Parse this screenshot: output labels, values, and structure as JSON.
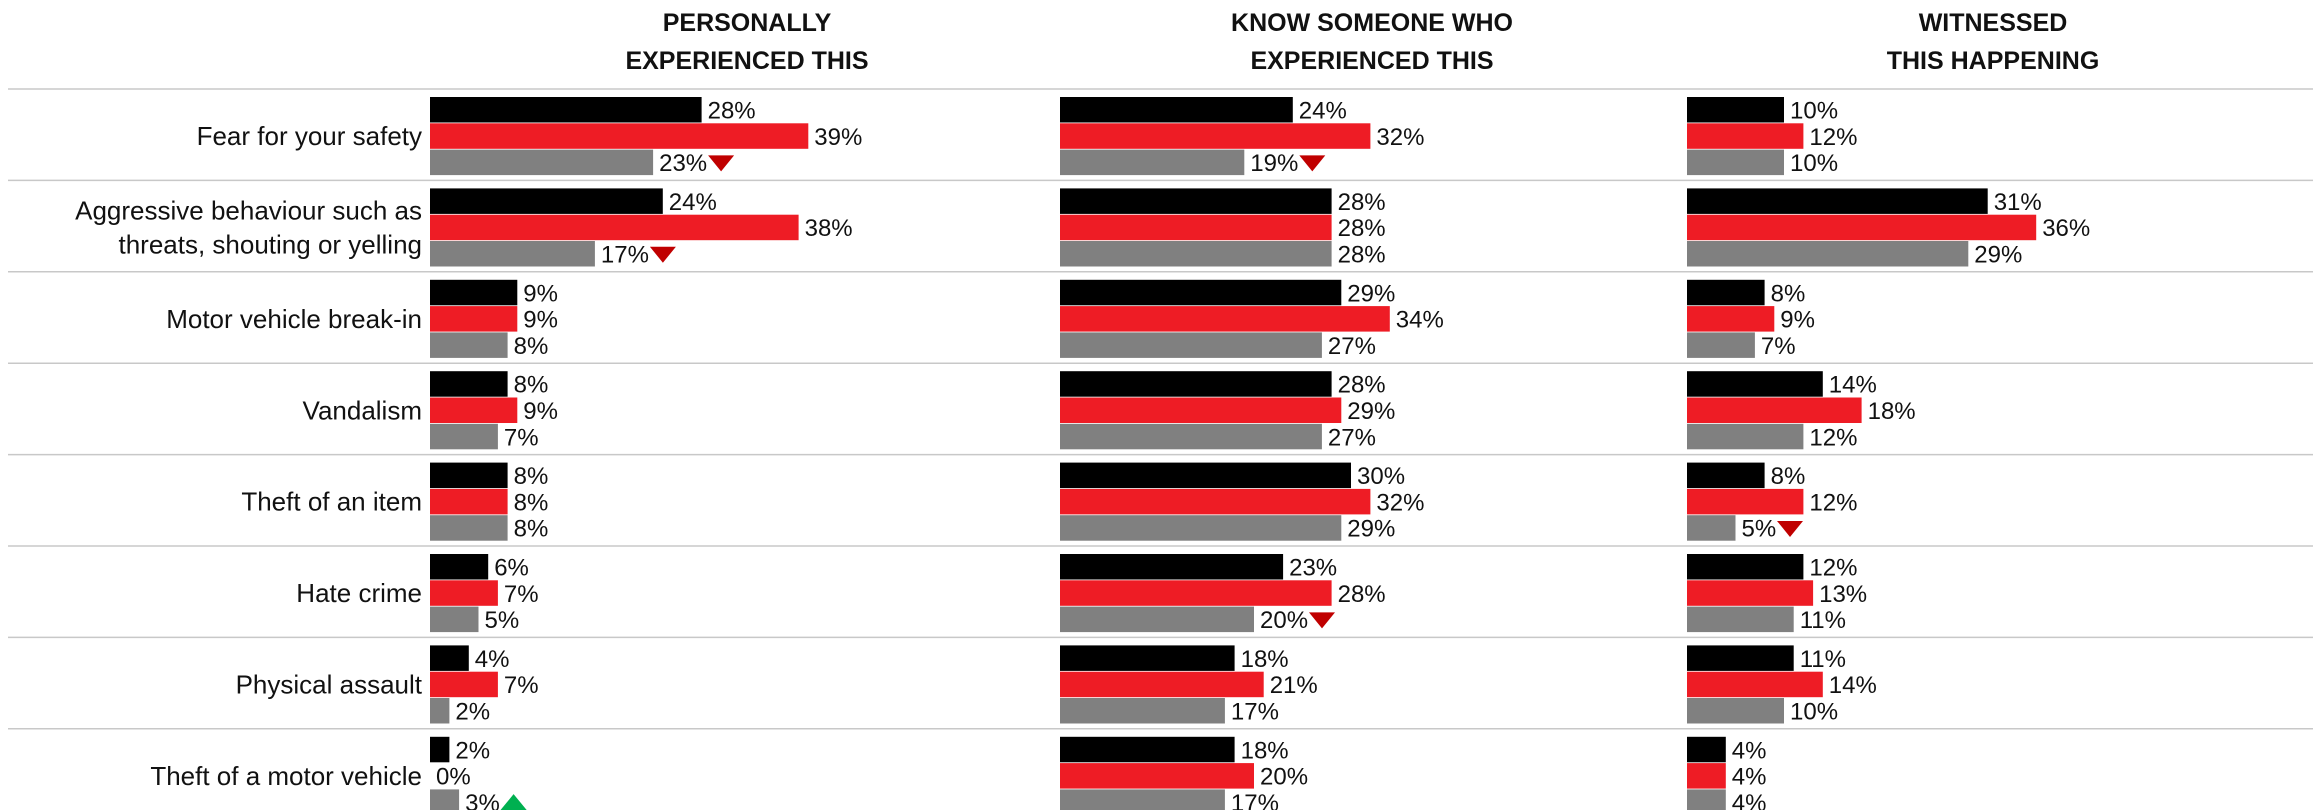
{
  "chart_data": {
    "type": "bar",
    "orientation": "horizontal",
    "panels": [
      {
        "title": [
          "PERSONALLY",
          "EXPERIENCED THIS"
        ]
      },
      {
        "title": [
          "KNOW SOMEONE WHO",
          "EXPERIENCED THIS"
        ]
      },
      {
        "title": [
          "WITNESSED",
          "THIS HAPPENING"
        ]
      }
    ],
    "categories": [
      [
        "Fear for your safety"
      ],
      [
        "Aggressive behaviour such as",
        "threats, shouting or yelling"
      ],
      [
        "Motor vehicle break-in"
      ],
      [
        "Vandalism"
      ],
      [
        "Theft of an item"
      ],
      [
        "Hate crime"
      ],
      [
        "Physical assault"
      ],
      [
        "Theft of a motor vehicle"
      ]
    ],
    "series_colors": [
      "#000000",
      "#ee1c25",
      "#808080"
    ],
    "values": [
      [
        [
          28,
          39,
          23
        ],
        [
          24,
          32,
          19
        ],
        [
          10,
          12,
          10
        ]
      ],
      [
        [
          24,
          38,
          17
        ],
        [
          28,
          28,
          28
        ],
        [
          31,
          36,
          29
        ]
      ],
      [
        [
          9,
          9,
          8
        ],
        [
          29,
          34,
          27
        ],
        [
          8,
          9,
          7
        ]
      ],
      [
        [
          8,
          9,
          7
        ],
        [
          28,
          29,
          27
        ],
        [
          14,
          18,
          12
        ]
      ],
      [
        [
          8,
          8,
          8
        ],
        [
          30,
          32,
          29
        ],
        [
          8,
          12,
          5
        ]
      ],
      [
        [
          6,
          7,
          5
        ],
        [
          23,
          28,
          20
        ],
        [
          12,
          13,
          11
        ]
      ],
      [
        [
          4,
          7,
          2
        ],
        [
          18,
          21,
          17
        ],
        [
          11,
          14,
          10
        ]
      ],
      [
        [
          2,
          0,
          3
        ],
        [
          18,
          20,
          17
        ],
        [
          4,
          4,
          4
        ]
      ]
    ],
    "markers": [
      {
        "category": 0,
        "panel": 0,
        "series": 2,
        "direction": "down",
        "color": "#c00000"
      },
      {
        "category": 0,
        "panel": 1,
        "series": 2,
        "direction": "down",
        "color": "#c00000"
      },
      {
        "category": 1,
        "panel": 0,
        "series": 2,
        "direction": "down",
        "color": "#c00000"
      },
      {
        "category": 4,
        "panel": 2,
        "series": 2,
        "direction": "down",
        "color": "#c00000"
      },
      {
        "category": 5,
        "panel": 1,
        "series": 2,
        "direction": "down",
        "color": "#c00000"
      },
      {
        "category": 7,
        "panel": 0,
        "series": 2,
        "direction": "up",
        "color": "#00b050"
      }
    ],
    "value_format": "%"
  }
}
